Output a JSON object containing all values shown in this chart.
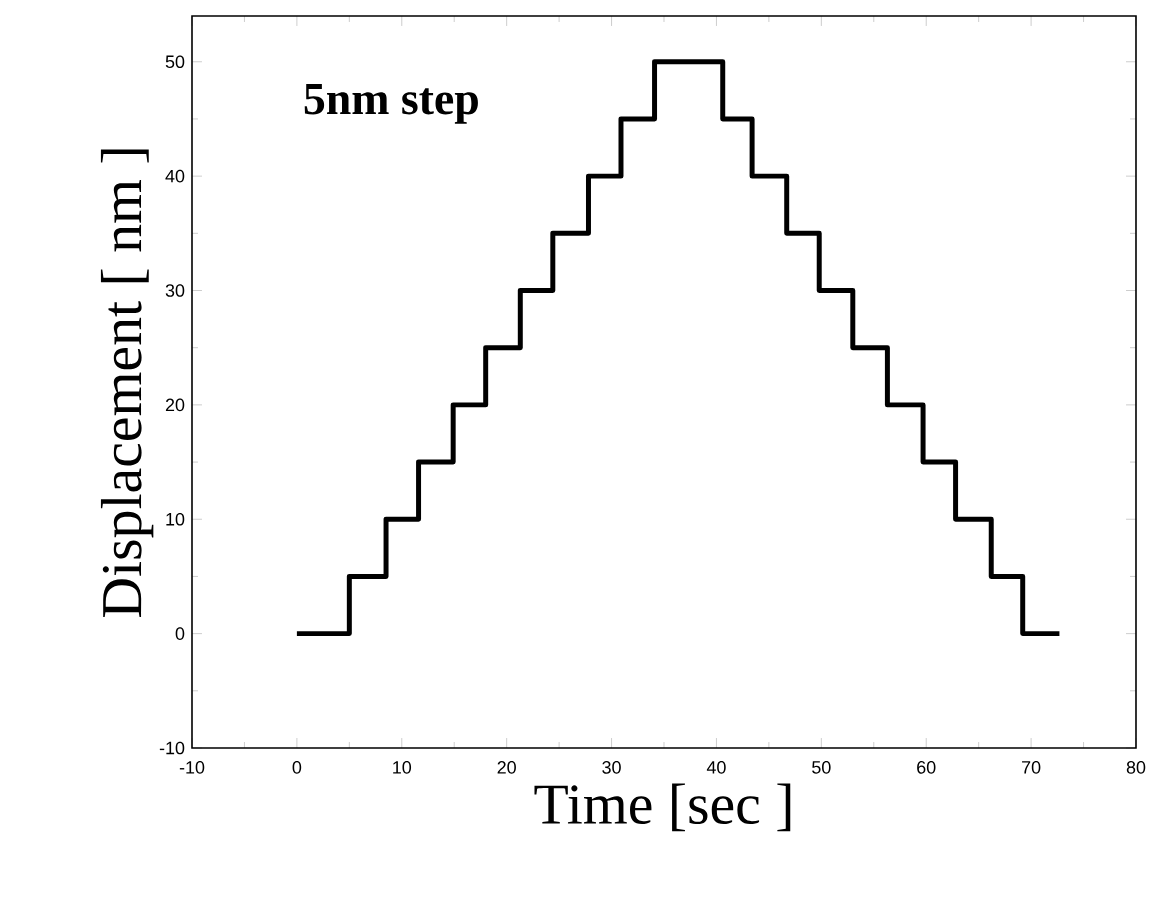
{
  "chart_data": {
    "type": "step",
    "xlabel": "Time [sec ]",
    "ylabel": "Displacement [ nm ]",
    "annotations": [
      "5nm step"
    ],
    "xlim": [
      -10,
      80
    ],
    "ylim": [
      -10,
      54
    ],
    "xticks": [
      -10,
      0,
      10,
      20,
      30,
      40,
      50,
      60,
      70,
      80
    ],
    "yticks": [
      -10,
      0,
      10,
      20,
      30,
      40,
      50
    ],
    "x": [
      0,
      5,
      8.5,
      11.6,
      14.9,
      18,
      21.3,
      24.4,
      27.8,
      30.9,
      34.1,
      40.6,
      43.4,
      46.7,
      49.8,
      53,
      56.3,
      59.7,
      62.8,
      66.2,
      69.2,
      72.7
    ],
    "series": [
      {
        "color": "#000000",
        "values": [
          0,
          5,
          10,
          15,
          20,
          25,
          30,
          35,
          40,
          45,
          50,
          45,
          40,
          35,
          30,
          25,
          20,
          15,
          10,
          5,
          0,
          0
        ]
      }
    ]
  }
}
